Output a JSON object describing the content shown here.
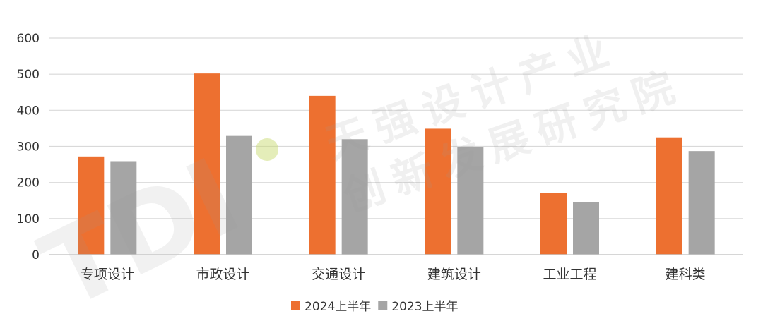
{
  "watermark": {
    "logo_text": "TDI",
    "line1": "天强设计产业",
    "line2": "创新发展研究院"
  },
  "chart_data": {
    "type": "bar",
    "categories": [
      "专项设计",
      "市政设计",
      "交通设计",
      "建筑设计",
      "工业工程",
      "建科类"
    ],
    "series": [
      {
        "name": "2024上半年",
        "color": "#ED7030",
        "values": [
          272,
          502,
          440,
          349,
          171,
          325
        ]
      },
      {
        "name": "2023上半年",
        "color": "#A5A5A5",
        "values": [
          259,
          329,
          320,
          299,
          145,
          287
        ]
      }
    ],
    "y_ticks": [
      0,
      100,
      200,
      300,
      400,
      500,
      600
    ],
    "ylim": [
      0,
      600
    ],
    "grid": true,
    "legend_position": "bottom",
    "title": "",
    "xlabel": "",
    "ylabel": ""
  }
}
